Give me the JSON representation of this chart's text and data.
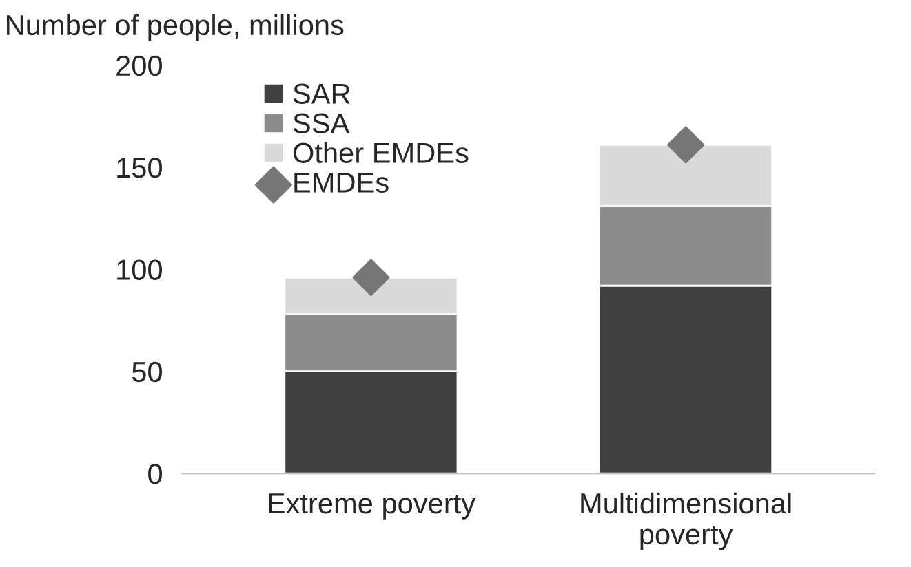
{
  "chart_data": {
    "type": "bar",
    "stacked": true,
    "ylabel": "Number of people, millions",
    "categories": [
      "Extreme poverty",
      "Multidimensional\npoverty"
    ],
    "series": [
      {
        "name": "SAR",
        "color": "#404040",
        "values": [
          50,
          92
        ]
      },
      {
        "name": "SSA",
        "color": "#8c8c8c",
        "values": [
          28,
          39
        ]
      },
      {
        "name": "Other EMDEs",
        "color": "#d9d9d9",
        "values": [
          18,
          30
        ]
      },
      {
        "name": "EMDEs",
        "type": "scatter",
        "color": "#767676",
        "marker": "diamond",
        "values": [
          96,
          161
        ]
      }
    ],
    "ylim": [
      0,
      200
    ],
    "yticks": [
      0,
      50,
      100,
      150,
      200
    ],
    "grid": false,
    "legend": "top left"
  }
}
